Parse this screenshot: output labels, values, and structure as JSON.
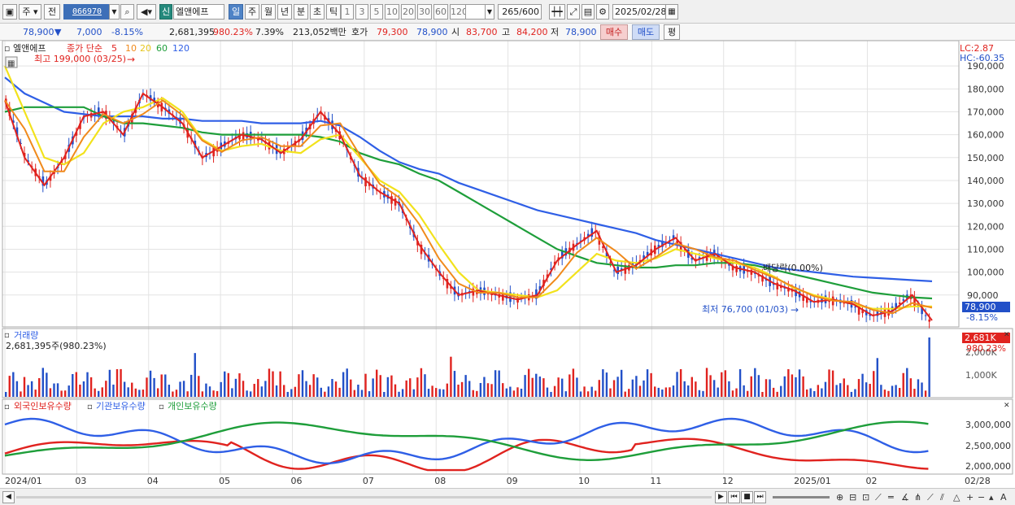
{
  "toolbar": {
    "market": "주",
    "prev_label": "전",
    "code": "066970",
    "name_badge": "신",
    "stock_name": "엘앤에프",
    "periods": [
      "일",
      "주",
      "월",
      "년",
      "분",
      "초",
      "틱"
    ],
    "active_period": "일",
    "minutes": [
      "1",
      "3",
      "5",
      "10",
      "20",
      "30",
      "60",
      "120"
    ],
    "count": "265",
    "count_max": "/600",
    "date": "2025/02/28"
  },
  "quote": {
    "price": "78,900",
    "change": "7,000",
    "change_pct": "-8.15%",
    "volume": "2,681,395",
    "volume_ratio": "980.23%",
    "turnover": "7.39%",
    "amount": "213,052백만",
    "ask_label": "호가",
    "ask": "79,300",
    "bid": "78,900",
    "open_label": "시",
    "open": "83,700",
    "high_label": "고",
    "high": "84,200",
    "low_label": "저",
    "low": "78,900",
    "buy_label": "매수",
    "sell_label": "매도",
    "flat_label": "평"
  },
  "price_panel": {
    "stock_name": "엘앤에프",
    "legend_prefix": "종가 단순",
    "ma_periods": [
      "5",
      "10",
      "20",
      "60",
      "120"
    ],
    "ma_colors": [
      "#e0231f",
      "#f08a1c",
      "#f2e21c",
      "#1e9e3a",
      "#2f5fe6"
    ],
    "high_note": "최고 199,000 (03/25)",
    "low_note": "최저 76,700 (01/03)",
    "lc": "LC:2.87",
    "hc": "HC:-60.35",
    "current_price": "78,900",
    "current_pct": "-8.15%",
    "misc_label": "배당락(0.00%)",
    "price_axis": [
      "190,000",
      "180,000",
      "170,000",
      "160,000",
      "150,000",
      "140,000",
      "130,000",
      "120,000",
      "110,000",
      "100,000",
      "90,000"
    ]
  },
  "volume_panel": {
    "title": "거래량",
    "value": "2,681,395주(980.23%)",
    "badge_value": "2,681K",
    "badge_pct": "980.23%",
    "axis": [
      "2,000K",
      "1,000K"
    ]
  },
  "holding_panel": {
    "series_names": [
      "외국인보유수량",
      "기관보유수량",
      "개인보유수량"
    ],
    "series_colors": [
      "#e0231f",
      "#2f5fe6",
      "#1e9e3a"
    ],
    "axis": [
      "3,000,000",
      "2,500,000",
      "2,000,000"
    ]
  },
  "x_axis": {
    "labels": [
      "2024/01",
      "03",
      "04",
      "05",
      "06",
      "07",
      "08",
      "09",
      "10",
      "11",
      "12",
      "2025/01",
      "02"
    ],
    "end_label": "02/28"
  },
  "chart_data": {
    "type": "line",
    "title": "",
    "ylabel": "",
    "ylim": [
      75000,
      200000
    ],
    "y_ticks": [
      90000,
      100000,
      110000,
      120000,
      130000,
      140000,
      150000,
      160000,
      170000,
      180000,
      190000
    ],
    "x_label_dates": [
      "2024/01",
      "03",
      "04",
      "05",
      "06",
      "07",
      "08",
      "09",
      "10",
      "11",
      "12",
      "2025/01",
      "02"
    ],
    "series": [
      {
        "name": "종가",
        "values": [
          175000,
          150000,
          138000,
          150000,
          168000,
          170000,
          160000,
          178000,
          172000,
          165000,
          150000,
          155000,
          160000,
          158000,
          152000,
          158000,
          170000,
          160000,
          142000,
          135000,
          130000,
          112000,
          100000,
          90000,
          92000,
          90000,
          88000,
          90000,
          105000,
          112000,
          118000,
          100000,
          103000,
          110000,
          115000,
          105000,
          108000,
          102000,
          100000,
          95000,
          92000,
          87000,
          88000,
          86000,
          81000,
          83000,
          90000,
          78900
        ]
      },
      {
        "name": "120",
        "values": [
          185000,
          178000,
          174000,
          170000,
          169000,
          168000,
          168000,
          168000,
          167000,
          167000,
          166000,
          166000,
          166000,
          165000,
          165000,
          165000,
          166000,
          164000,
          159000,
          153000,
          148000,
          145000,
          143000,
          139000,
          136000,
          133000,
          130000,
          127000,
          125000,
          123000,
          121000,
          119000,
          117000,
          114000,
          112000,
          110000,
          108000,
          106000,
          104000,
          102000,
          101000,
          100000,
          99000,
          98000,
          97500,
          97000,
          96500,
          96000
        ]
      },
      {
        "name": "60",
        "values": [
          170000,
          172000,
          172000,
          172000,
          172000,
          168000,
          165000,
          165000,
          164000,
          163000,
          161000,
          160000,
          160000,
          160000,
          160000,
          160000,
          159000,
          157000,
          152000,
          149000,
          147000,
          143000,
          140000,
          135000,
          130000,
          125000,
          120000,
          115000,
          110000,
          107000,
          104000,
          103000,
          102000,
          102000,
          103000,
          103000,
          104000,
          104000,
          103000,
          101000,
          99000,
          97000,
          95000,
          93000,
          91000,
          90000,
          89000,
          88500
        ]
      },
      {
        "name": "20",
        "values": [
          190000,
          170000,
          150000,
          147000,
          152000,
          165000,
          170000,
          172000,
          176000,
          170000,
          158000,
          153000,
          155000,
          156000,
          153000,
          152000,
          158000,
          160000,
          150000,
          140000,
          135000,
          125000,
          112000,
          100000,
          92000,
          91000,
          90000,
          89000,
          92000,
          100000,
          108000,
          105000,
          104000,
          106000,
          110000,
          108000,
          106000,
          104000,
          102000,
          98000,
          93000,
          90000,
          88000,
          86000,
          84000,
          84000,
          85000,
          85000
        ]
      }
    ],
    "grid": true,
    "legend_position": "top-left"
  }
}
